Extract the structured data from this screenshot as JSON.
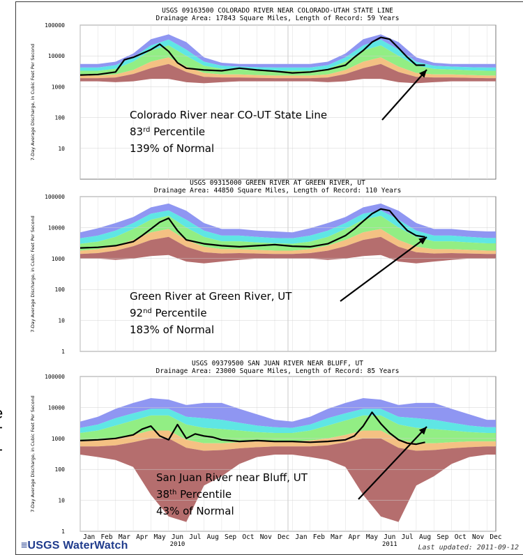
{
  "edge_text": [
    "e",
    "T",
    "T",
    "."
  ],
  "footer": {
    "logo": "≡USGS WaterWatch",
    "updated": "Last updated: 2011-09-12"
  },
  "colors": {
    "max_band": "#8f96f2",
    "high_band": "#5fe6e4",
    "normal_band": "#92ee84",
    "low_band": "#f4c183",
    "min_band": "#b56e6e",
    "flow_line": "#000000"
  },
  "x_axis": {
    "month_labels": [
      "Jan",
      "Feb",
      "Mar",
      "Apr",
      "May",
      "Jun",
      "Jul",
      "Aug",
      "Sep",
      "Oct",
      "Nov",
      "Dec",
      "Jan",
      "Feb",
      "Mar",
      "Apr",
      "May",
      "Jun",
      "Jul",
      "Aug",
      "Sep",
      "Oct",
      "Nov",
      "Dec"
    ],
    "year_labels": [
      "2010",
      "2011"
    ]
  },
  "chart_data": [
    {
      "type": "area",
      "title": "USGS 09163500 COLORADO RIVER NEAR COLORADO-UTAH STATE LINE",
      "subtitle": "Drainage Area: 17843 Square Miles, Length of Record: 59 Years",
      "ylabel": "7-Day Average Discharge, in Cubic Feet Per Second",
      "yscale": "log",
      "ylim": [
        1,
        100000
      ],
      "yticks": [
        "100000",
        "10000",
        "1000",
        "100",
        "10"
      ],
      "annotation": {
        "line1": "Colorado River near CO-UT State Line",
        "pct_num": "83",
        "pct_suffix": "rd",
        "pct_word": " Percentile",
        "line3": "139% of Normal"
      },
      "months": [
        1,
        2,
        3,
        4,
        5,
        6,
        7,
        8,
        9,
        10,
        11,
        12,
        13,
        14,
        15,
        16,
        17,
        18,
        19,
        20,
        21,
        22,
        23,
        24
      ],
      "bands": {
        "max": [
          5500,
          5500,
          6500,
          12000,
          35000,
          50000,
          28000,
          9000,
          6000,
          5500,
          5500,
          5500,
          5500,
          5500,
          6500,
          12000,
          35000,
          50000,
          28000,
          9000,
          6000,
          5500,
          5500,
          5500
        ],
        "p90": [
          4200,
          4200,
          5000,
          9000,
          22000,
          34000,
          16000,
          6500,
          4800,
          4500,
          4300,
          4200,
          4200,
          4200,
          5000,
          9000,
          22000,
          34000,
          16000,
          6500,
          4800,
          4500,
          4300,
          4200
        ],
        "p75": [
          3300,
          3300,
          3800,
          6500,
          15000,
          22000,
          10000,
          4800,
          3800,
          3600,
          3400,
          3300,
          3300,
          3300,
          3800,
          6500,
          15000,
          22000,
          10000,
          4800,
          3800,
          3600,
          3400,
          3300
        ],
        "p25": [
          2300,
          2300,
          2500,
          3500,
          6500,
          9000,
          4500,
          2800,
          2500,
          2500,
          2400,
          2300,
          2300,
          2300,
          2500,
          3500,
          6500,
          9000,
          4500,
          2800,
          2500,
          2500,
          2400,
          2300
        ],
        "p10": [
          1900,
          1900,
          2000,
          2600,
          4000,
          5500,
          3000,
          2100,
          2000,
          2000,
          1950,
          1900,
          1900,
          1900,
          2000,
          2600,
          4000,
          5500,
          3000,
          2100,
          2000,
          2000,
          1950,
          1900
        ],
        "min": [
          1500,
          1500,
          1400,
          1500,
          1800,
          1800,
          1400,
          1300,
          1400,
          1500,
          1500,
          1500,
          1500,
          1500,
          1400,
          1500,
          1800,
          1800,
          1400,
          1300,
          1400,
          1500,
          1500,
          1500
        ]
      },
      "flow": {
        "x": [
          1,
          2,
          3,
          3.5,
          4,
          4.5,
          5,
          5.5,
          6,
          6.5,
          7,
          8,
          9,
          10,
          11,
          12,
          13,
          14,
          15,
          16,
          16.5,
          17,
          17.5,
          18,
          18.5,
          19,
          19.5,
          20,
          20.5
        ],
        "y": [
          2400,
          2500,
          3000,
          7500,
          9000,
          12000,
          16000,
          24000,
          14000,
          6000,
          4000,
          3500,
          3300,
          4000,
          3500,
          3200,
          2800,
          3000,
          3600,
          5000,
          9000,
          15000,
          28000,
          40000,
          35000,
          18000,
          9000,
          5000,
          5000
        ]
      }
    },
    {
      "type": "area",
      "title": "USGS 09315000 GREEN RIVER AT GREEN RIVER, UT",
      "subtitle": "Drainage Area: 44850 Square Miles, Length of Record: 110 Years",
      "ylabel": "7-Day Average Discharge, in Cubic Feet Per Second",
      "yscale": "log",
      "ylim": [
        1,
        100000
      ],
      "yticks": [
        "100000",
        "10000",
        "1000",
        "100",
        "10",
        "1"
      ],
      "annotation": {
        "line1": "Green River at Green River, UT",
        "pct_num": "92",
        "pct_suffix": "nd",
        "pct_word": " Percentile",
        "line3": "183% of Normal"
      },
      "months": [
        1,
        2,
        3,
        4,
        5,
        6,
        7,
        8,
        9,
        10,
        11,
        12,
        13,
        14,
        15,
        16,
        17,
        18,
        19,
        20,
        21,
        22,
        23,
        24
      ],
      "bands": {
        "max": [
          7000,
          9500,
          14000,
          22000,
          45000,
          60000,
          35000,
          14000,
          9000,
          9000,
          8000,
          7500,
          7000,
          9500,
          14000,
          22000,
          45000,
          60000,
          35000,
          14000,
          9000,
          9000,
          8000,
          7500
        ],
        "p90": [
          4500,
          5500,
          8000,
          14000,
          28000,
          36000,
          18000,
          8000,
          5500,
          5500,
          5000,
          4600,
          4500,
          5500,
          8000,
          14000,
          28000,
          36000,
          18000,
          8000,
          5500,
          5500,
          5000,
          4600
        ],
        "p75": [
          3000,
          3500,
          5000,
          9000,
          18000,
          24000,
          10000,
          5000,
          3600,
          3600,
          3300,
          3100,
          3000,
          3500,
          5000,
          9000,
          18000,
          24000,
          10000,
          5000,
          3600,
          3600,
          3300,
          3100
        ],
        "p25": [
          1800,
          2000,
          2600,
          4000,
          7000,
          9000,
          4000,
          2400,
          2000,
          2000,
          1900,
          1800,
          1800,
          2000,
          2600,
          4000,
          7000,
          9000,
          4000,
          2400,
          2000,
          2000,
          1900,
          1800
        ],
        "p10": [
          1400,
          1500,
          1800,
          2500,
          4000,
          5000,
          2400,
          1600,
          1450,
          1500,
          1450,
          1400,
          1400,
          1500,
          1800,
          2500,
          4000,
          5000,
          2400,
          1600,
          1450,
          1500,
          1450,
          1400
        ],
        "min": [
          1000,
          1000,
          900,
          1000,
          1200,
          1300,
          800,
          700,
          800,
          900,
          1000,
          1000,
          1000,
          1000,
          900,
          1000,
          1200,
          1300,
          800,
          700,
          800,
          900,
          1000,
          1000
        ]
      },
      "flow": {
        "x": [
          1,
          2,
          3,
          4,
          4.5,
          5,
          5.5,
          6,
          6.5,
          7,
          8,
          9,
          10,
          11,
          12,
          13,
          14,
          15,
          16,
          16.5,
          17,
          17.5,
          18,
          18.5,
          19,
          19.5,
          20,
          20.5
        ],
        "y": [
          2200,
          2300,
          2600,
          3500,
          5500,
          9000,
          15000,
          20000,
          8000,
          4000,
          3000,
          2600,
          2400,
          2600,
          2800,
          2500,
          2400,
          3000,
          5500,
          9000,
          16000,
          28000,
          40000,
          35000,
          16000,
          8000,
          5500,
          5000
        ]
      }
    },
    {
      "type": "area",
      "title": "USGS 09379500 SAN JUAN RIVER NEAR BLUFF, UT",
      "subtitle": "Drainage Area: 23000 Square Miles, Length of Record: 85 Years",
      "ylabel": "7-Day Average Discharge, in Cubic Feet Per Second",
      "yscale": "log",
      "ylim": [
        1,
        100000
      ],
      "yticks": [
        "100000",
        "10000",
        "1000",
        "100",
        "10",
        "1"
      ],
      "annotation": {
        "line1": "San Juan River near Bluff, UT",
        "pct_num": "38",
        "pct_suffix": "th",
        "pct_word": " Percentile",
        "line3": "43% of Normal"
      },
      "months": [
        1,
        2,
        3,
        4,
        5,
        6,
        7,
        8,
        9,
        10,
        11,
        12,
        13,
        14,
        15,
        16,
        17,
        18,
        19,
        20,
        21,
        22,
        23,
        24
      ],
      "bands": {
        "max": [
          3500,
          5000,
          9000,
          14000,
          20000,
          18000,
          12000,
          14000,
          14000,
          9000,
          6000,
          4000,
          3500,
          5000,
          9000,
          14000,
          20000,
          18000,
          12000,
          14000,
          14000,
          9000,
          6000,
          4000
        ],
        "p90": [
          2200,
          2800,
          4500,
          6500,
          9000,
          9000,
          5000,
          4500,
          4000,
          3200,
          2600,
          2300,
          2200,
          2800,
          4500,
          6500,
          9000,
          9000,
          5000,
          4500,
          4000,
          3200,
          2600,
          2300
        ],
        "p75": [
          1500,
          1800,
          2600,
          3800,
          5500,
          5500,
          2800,
          2200,
          2000,
          1800,
          1600,
          1500,
          1500,
          1800,
          2600,
          3800,
          5500,
          5500,
          2800,
          2200,
          2000,
          1800,
          1600,
          1500
        ],
        "p25": [
          800,
          850,
          1000,
          1300,
          1800,
          1800,
          900,
          700,
          700,
          750,
          800,
          800,
          800,
          850,
          1000,
          1300,
          1800,
          1800,
          900,
          700,
          700,
          750,
          800,
          800
        ],
        "p10": [
          550,
          550,
          600,
          750,
          1000,
          1000,
          500,
          400,
          420,
          480,
          520,
          550,
          550,
          550,
          600,
          750,
          1000,
          1000,
          500,
          400,
          420,
          480,
          520,
          550
        ],
        "min": [
          300,
          250,
          200,
          120,
          15,
          3,
          2,
          30,
          60,
          150,
          250,
          300,
          300,
          250,
          200,
          120,
          15,
          3,
          2,
          30,
          60,
          150,
          250,
          300
        ]
      },
      "flow": {
        "x": [
          1,
          2,
          3,
          4,
          4.5,
          5,
          5.5,
          6,
          6.5,
          7,
          7.5,
          8,
          8.5,
          9,
          10,
          11,
          12,
          13,
          14,
          15,
          16,
          16.5,
          17,
          17.5,
          18,
          18.5,
          19,
          19.5,
          20,
          20.5
        ],
        "y": [
          850,
          900,
          1000,
          1300,
          2000,
          2500,
          1200,
          900,
          2800,
          1000,
          1400,
          1200,
          1100,
          900,
          800,
          850,
          800,
          800,
          750,
          800,
          900,
          1200,
          2500,
          7000,
          3000,
          1500,
          900,
          700,
          650,
          750
        ]
      }
    }
  ]
}
